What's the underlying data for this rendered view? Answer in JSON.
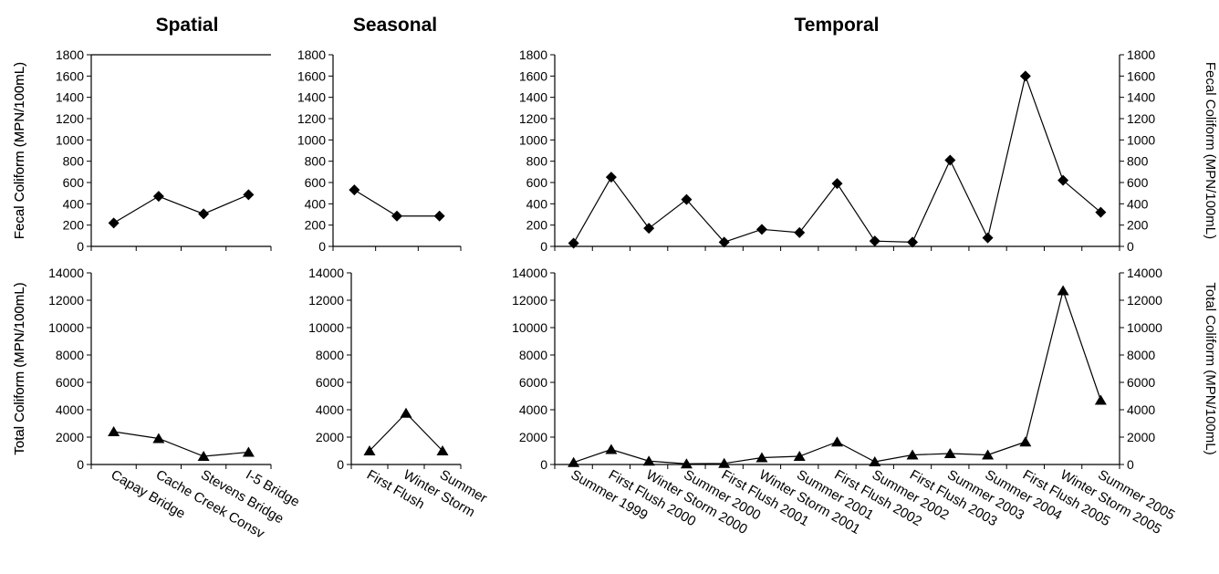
{
  "chart_data": [
    {
      "id": "spatial-fecal",
      "type": "line",
      "title": "Spatial",
      "ylabel": "Fecal Coliform (MPN/100mL)",
      "ylim": [
        0,
        1800
      ],
      "yticks": [
        0,
        200,
        400,
        600,
        800,
        1000,
        1200,
        1400,
        1600,
        1800
      ],
      "categories": [
        "Capay Bridge",
        "Cache Creek Consv",
        "Stevens Bridge",
        "I-5 Bridge"
      ],
      "series": [
        {
          "values": [
            220,
            470,
            305,
            485
          ],
          "marker": "diamond"
        }
      ]
    },
    {
      "id": "seasonal-fecal",
      "type": "line",
      "title": "Seasonal",
      "ylabel": "",
      "ylim": [
        0,
        1800
      ],
      "yticks": [
        0,
        200,
        400,
        600,
        800,
        1000,
        1200,
        1400,
        1600,
        1800
      ],
      "categories": [
        "First Flush",
        "Winter Storm",
        "Summer"
      ],
      "series": [
        {
          "values": [
            530,
            285,
            285
          ],
          "marker": "diamond"
        }
      ]
    },
    {
      "id": "temporal-fecal",
      "type": "line",
      "title": "Temporal",
      "ylabel": "Fecal Coliform (MPN/100mL)",
      "ylim": [
        0,
        1800
      ],
      "yticks": [
        0,
        200,
        400,
        600,
        800,
        1000,
        1200,
        1400,
        1600,
        1800
      ],
      "categories": [
        "Summer 1999",
        "First Flush 2000",
        "Winter Storm 2000",
        "Summer 2000",
        "First Flush 2001",
        "Winter Storm 2001",
        "Summer 2001",
        "First Flush 2002",
        "Summer 2002",
        "First Flush 2003",
        "Summer 2003",
        "Summer 2004",
        "First Flush 2005",
        "Winter Storm 2005",
        "Summer 2005"
      ],
      "series": [
        {
          "values": [
            30,
            650,
            170,
            440,
            40,
            160,
            130,
            590,
            50,
            40,
            810,
            80,
            1600,
            620,
            320
          ],
          "marker": "diamond"
        }
      ]
    },
    {
      "id": "spatial-total",
      "type": "line",
      "title": "",
      "ylabel": "Total Coliform (MPN/100mL)",
      "ylim": [
        0,
        14000
      ],
      "yticks": [
        0,
        2000,
        4000,
        6000,
        8000,
        10000,
        12000,
        14000
      ],
      "categories": [
        "Capay Bridge",
        "Cache Creek Consv",
        "Stevens Bridge",
        "I-5 Bridge"
      ],
      "series": [
        {
          "values": [
            2400,
            1900,
            600,
            900
          ],
          "marker": "triangle"
        }
      ]
    },
    {
      "id": "seasonal-total",
      "type": "line",
      "title": "",
      "ylabel": "",
      "ylim": [
        0,
        14000
      ],
      "yticks": [
        0,
        2000,
        4000,
        6000,
        8000,
        10000,
        12000,
        14000
      ],
      "categories": [
        "First Flush",
        "Winter Storm",
        "Summer"
      ],
      "series": [
        {
          "values": [
            1000,
            3750,
            1000
          ],
          "marker": "triangle"
        }
      ]
    },
    {
      "id": "temporal-total",
      "type": "line",
      "title": "",
      "ylabel": "Total Coliform (MPN/100mL)",
      "ylim": [
        0,
        14000
      ],
      "yticks": [
        0,
        2000,
        4000,
        6000,
        8000,
        10000,
        12000,
        14000
      ],
      "categories": [
        "Summer 1999",
        "First Flush 2000",
        "Winter Storm 2000",
        "Summer 2000",
        "First Flush 2001",
        "Winter Storm 2001",
        "Summer 2001",
        "First Flush 2002",
        "Summer 2002",
        "First Flush 2003",
        "Summer 2003",
        "Summer 2004",
        "First Flush 2005",
        "Winter Storm 2005",
        "Summer 2005"
      ],
      "series": [
        {
          "values": [
            150,
            1100,
            250,
            50,
            80,
            500,
            600,
            1650,
            200,
            700,
            800,
            700,
            1650,
            12700,
            4700
          ],
          "marker": "triangle"
        }
      ]
    }
  ]
}
